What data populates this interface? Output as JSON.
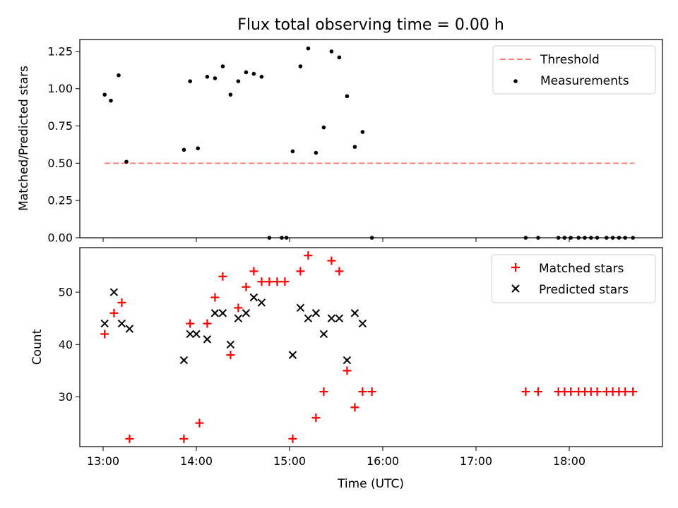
{
  "chart_data": [
    {
      "type": "scatter",
      "title": "Flux total observing time = 0.00 h",
      "ylabel": "Matched/Predicted stars",
      "xlim": [
        "12:45",
        "19:00"
      ],
      "ylim": [
        0,
        1.33
      ],
      "xticks": [
        "13:00",
        "14:00",
        "15:00",
        "16:00",
        "17:00",
        "18:00"
      ],
      "xtick_labels_shown": false,
      "yticks": [
        0.0,
        0.25,
        0.5,
        0.75,
        1.0,
        1.25
      ],
      "ytick_labels": [
        "0.00",
        "0.25",
        "0.50",
        "0.75",
        "1.00",
        "1.25"
      ],
      "legend": {
        "position": "top-right"
      },
      "threshold": {
        "name": "Threshold",
        "y": 0.5,
        "x_range": [
          "13:01",
          "18:42"
        ],
        "color": "#ff7f7f",
        "style": "dashed"
      },
      "series": [
        {
          "name": "Measurements",
          "color": "#000000",
          "marker": "dot",
          "points": [
            {
              "x": "13:01",
              "y": 0.96
            },
            {
              "x": "13:05",
              "y": 0.92
            },
            {
              "x": "13:10",
              "y": 1.09
            },
            {
              "x": "13:15",
              "y": 0.51
            },
            {
              "x": "13:52",
              "y": 0.59
            },
            {
              "x": "13:56",
              "y": 1.05
            },
            {
              "x": "14:01",
              "y": 0.6
            },
            {
              "x": "14:07",
              "y": 1.08
            },
            {
              "x": "14:12",
              "y": 1.07
            },
            {
              "x": "14:17",
              "y": 1.15
            },
            {
              "x": "14:22",
              "y": 0.96
            },
            {
              "x": "14:27",
              "y": 1.05
            },
            {
              "x": "14:32",
              "y": 1.11
            },
            {
              "x": "14:37",
              "y": 1.1
            },
            {
              "x": "14:42",
              "y": 1.08
            },
            {
              "x": "14:47",
              "y": 0.0
            },
            {
              "x": "14:55",
              "y": 0.0
            },
            {
              "x": "14:58",
              "y": 0.0
            },
            {
              "x": "15:02",
              "y": 0.58
            },
            {
              "x": "15:07",
              "y": 1.15
            },
            {
              "x": "15:12",
              "y": 1.27
            },
            {
              "x": "15:17",
              "y": 0.57
            },
            {
              "x": "15:22",
              "y": 0.74
            },
            {
              "x": "15:27",
              "y": 1.25
            },
            {
              "x": "15:32",
              "y": 1.21
            },
            {
              "x": "15:37",
              "y": 0.95
            },
            {
              "x": "15:42",
              "y": 0.61
            },
            {
              "x": "15:47",
              "y": 0.71
            },
            {
              "x": "15:53",
              "y": 0.0
            },
            {
              "x": "17:32",
              "y": 0.0
            },
            {
              "x": "17:40",
              "y": 0.0
            },
            {
              "x": "17:53",
              "y": 0.0
            },
            {
              "x": "17:57",
              "y": 0.0
            },
            {
              "x": "18:01",
              "y": 0.0
            },
            {
              "x": "18:06",
              "y": 0.0
            },
            {
              "x": "18:10",
              "y": 0.0
            },
            {
              "x": "18:14",
              "y": 0.0
            },
            {
              "x": "18:18",
              "y": 0.0
            },
            {
              "x": "18:24",
              "y": 0.0
            },
            {
              "x": "18:28",
              "y": 0.0
            },
            {
              "x": "18:32",
              "y": 0.0
            },
            {
              "x": "18:36",
              "y": 0.0
            },
            {
              "x": "18:41",
              "y": 0.0
            }
          ]
        }
      ]
    },
    {
      "type": "scatter",
      "xlabel": "Time (UTC)",
      "ylabel": "Count",
      "xlim": [
        "12:45",
        "19:00"
      ],
      "ylim": [
        20.5,
        58.5
      ],
      "xticks": [
        "13:00",
        "14:00",
        "15:00",
        "16:00",
        "17:00",
        "18:00"
      ],
      "yticks": [
        30,
        40,
        50
      ],
      "legend": {
        "position": "top-right"
      },
      "series": [
        {
          "name": "Matched stars",
          "color": "#ff0000",
          "marker": "plus",
          "points": [
            {
              "x": "13:01",
              "y": 42
            },
            {
              "x": "13:07",
              "y": 46
            },
            {
              "x": "13:12",
              "y": 48
            },
            {
              "x": "13:17",
              "y": 22
            },
            {
              "x": "13:52",
              "y": 22
            },
            {
              "x": "13:56",
              "y": 44
            },
            {
              "x": "14:02",
              "y": 25
            },
            {
              "x": "14:07",
              "y": 44
            },
            {
              "x": "14:12",
              "y": 49
            },
            {
              "x": "14:17",
              "y": 53
            },
            {
              "x": "14:22",
              "y": 38
            },
            {
              "x": "14:27",
              "y": 47
            },
            {
              "x": "14:32",
              "y": 51
            },
            {
              "x": "14:37",
              "y": 54
            },
            {
              "x": "14:42",
              "y": 52
            },
            {
              "x": "14:47",
              "y": 52
            },
            {
              "x": "14:52",
              "y": 52
            },
            {
              "x": "14:57",
              "y": 52
            },
            {
              "x": "15:02",
              "y": 22
            },
            {
              "x": "15:07",
              "y": 54
            },
            {
              "x": "15:12",
              "y": 57
            },
            {
              "x": "15:17",
              "y": 26
            },
            {
              "x": "15:22",
              "y": 31
            },
            {
              "x": "15:27",
              "y": 56
            },
            {
              "x": "15:32",
              "y": 54
            },
            {
              "x": "15:37",
              "y": 35
            },
            {
              "x": "15:42",
              "y": 28
            },
            {
              "x": "15:47",
              "y": 31
            },
            {
              "x": "15:53",
              "y": 31
            },
            {
              "x": "17:32",
              "y": 31
            },
            {
              "x": "17:40",
              "y": 31
            },
            {
              "x": "17:53",
              "y": 31
            },
            {
              "x": "17:57",
              "y": 31
            },
            {
              "x": "18:01",
              "y": 31
            },
            {
              "x": "18:06",
              "y": 31
            },
            {
              "x": "18:10",
              "y": 31
            },
            {
              "x": "18:14",
              "y": 31
            },
            {
              "x": "18:18",
              "y": 31
            },
            {
              "x": "18:24",
              "y": 31
            },
            {
              "x": "18:28",
              "y": 31
            },
            {
              "x": "18:32",
              "y": 31
            },
            {
              "x": "18:36",
              "y": 31
            },
            {
              "x": "18:41",
              "y": 31
            }
          ]
        },
        {
          "name": "Predicted stars",
          "color": "#000000",
          "marker": "x",
          "points": [
            {
              "x": "13:01",
              "y": 44
            },
            {
              "x": "13:07",
              "y": 50
            },
            {
              "x": "13:12",
              "y": 44
            },
            {
              "x": "13:17",
              "y": 43
            },
            {
              "x": "13:52",
              "y": 37
            },
            {
              "x": "13:56",
              "y": 42
            },
            {
              "x": "14:00",
              "y": 42
            },
            {
              "x": "14:07",
              "y": 41
            },
            {
              "x": "14:12",
              "y": 46
            },
            {
              "x": "14:17",
              "y": 46
            },
            {
              "x": "14:22",
              "y": 40
            },
            {
              "x": "14:27",
              "y": 45
            },
            {
              "x": "14:32",
              "y": 46
            },
            {
              "x": "14:37",
              "y": 49
            },
            {
              "x": "14:42",
              "y": 48
            },
            {
              "x": "15:02",
              "y": 38
            },
            {
              "x": "15:07",
              "y": 47
            },
            {
              "x": "15:12",
              "y": 45
            },
            {
              "x": "15:17",
              "y": 46
            },
            {
              "x": "15:22",
              "y": 42
            },
            {
              "x": "15:27",
              "y": 45
            },
            {
              "x": "15:32",
              "y": 45
            },
            {
              "x": "15:37",
              "y": 37
            },
            {
              "x": "15:42",
              "y": 46
            },
            {
              "x": "15:47",
              "y": 44
            }
          ]
        }
      ]
    }
  ]
}
